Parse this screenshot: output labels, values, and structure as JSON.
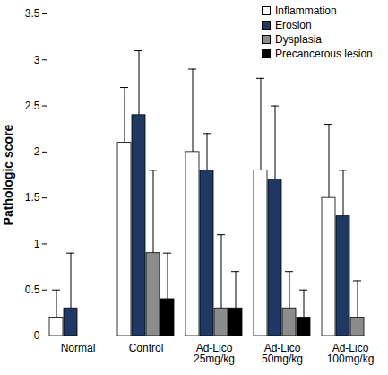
{
  "chart_data": {
    "type": "bar",
    "y_label": "Pathologic score",
    "categories": [
      "Normal",
      "Control",
      "Ad-Lico\n25mg/kg",
      "Ad-Lico\n50mg/kg",
      "Ad-Lico\n100mg/kg"
    ],
    "series": [
      {
        "name": "Inflammation",
        "color": "#ffffff",
        "values": [
          0.2,
          2.1,
          2.0,
          1.8,
          1.5
        ],
        "errors": [
          0.3,
          0.6,
          0.9,
          1.0,
          0.8
        ]
      },
      {
        "name": "Erosion",
        "color": "#1f3864",
        "values": [
          0.3,
          2.4,
          1.8,
          1.7,
          1.3
        ],
        "errors": [
          0.6,
          0.7,
          0.4,
          0.8,
          0.5
        ]
      },
      {
        "name": "Dysplasia",
        "color": "#8c8c8c",
        "values": [
          0,
          0.9,
          0.3,
          0.3,
          0.2
        ],
        "errors": [
          null,
          0.9,
          0.8,
          0.4,
          0.4
        ]
      },
      {
        "name": "Precancerous lesion",
        "color": "#000000",
        "values": [
          0,
          0.4,
          0.3,
          0.2,
          0
        ],
        "errors": [
          null,
          0.5,
          0.4,
          0.3,
          null
        ]
      }
    ],
    "ylim": [
      0,
      3.5
    ],
    "yticks": [
      0,
      0.5,
      1,
      1.5,
      2,
      2.5,
      3,
      3.5
    ],
    "legend": "top-right",
    "grid": false
  }
}
